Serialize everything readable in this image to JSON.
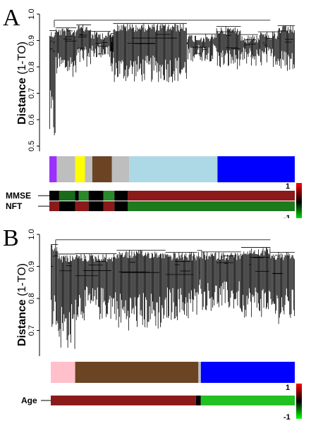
{
  "panels": [
    {
      "letter": "A",
      "ylabel_bold": "Distance",
      "ylabel_rest": " (1-TO)",
      "yticks": [
        "0.5",
        "0.6",
        "0.7",
        "0.8",
        "0.9",
        "1.0"
      ],
      "yrange": [
        0.48,
        1.0
      ],
      "modules": [
        {
          "color": "#9b30ff",
          "from": 0.0,
          "to": 0.03
        },
        {
          "color": "#bebebe",
          "from": 0.03,
          "to": 0.105
        },
        {
          "color": "#ffff00",
          "from": 0.105,
          "to": 0.145
        },
        {
          "color": "#bebebe",
          "from": 0.145,
          "to": 0.175
        },
        {
          "color": "#6b4423",
          "from": 0.175,
          "to": 0.255
        },
        {
          "color": "#bebebe",
          "from": 0.255,
          "to": 0.325
        },
        {
          "color": "#add8e6",
          "from": 0.325,
          "to": 0.685
        },
        {
          "color": "#0000ff",
          "from": 0.685,
          "to": 1.0
        }
      ],
      "traits": [
        {
          "label": "MMSE",
          "segments": [
            {
              "color": "#000000",
              "from": 0.0,
              "to": 0.04
            },
            {
              "color": "#1a6b1a",
              "from": 0.04,
              "to": 0.105
            },
            {
              "color": "#000000",
              "from": 0.105,
              "to": 0.12
            },
            {
              "color": "#2a8a2a",
              "from": 0.12,
              "to": 0.16
            },
            {
              "color": "#000000",
              "from": 0.16,
              "to": 0.22
            },
            {
              "color": "#2a8a2a",
              "from": 0.22,
              "to": 0.265
            },
            {
              "color": "#000000",
              "from": 0.265,
              "to": 0.32
            },
            {
              "color": "#8b1a1a",
              "from": 0.32,
              "to": 1.0
            }
          ]
        },
        {
          "label": "NFT",
          "segments": [
            {
              "color": "#8b1a1a",
              "from": 0.0,
              "to": 0.04
            },
            {
              "color": "#000000",
              "from": 0.04,
              "to": 0.105
            },
            {
              "color": "#8b1a1a",
              "from": 0.105,
              "to": 0.16
            },
            {
              "color": "#000000",
              "from": 0.16,
              "to": 0.22
            },
            {
              "color": "#8b1a1a",
              "from": 0.22,
              "to": 0.265
            },
            {
              "color": "#000000",
              "from": 0.265,
              "to": 0.32
            },
            {
              "color": "#1d7a1d",
              "from": 0.32,
              "to": 1.0
            }
          ]
        }
      ],
      "scale": {
        "top": "1",
        "bottom": "-1"
      }
    },
    {
      "letter": "B",
      "ylabel_bold": "Distance",
      "ylabel_rest": " (1-TO)",
      "yticks": [
        "0.7",
        "0.8",
        "0.9",
        "1.0"
      ],
      "yrange": [
        0.62,
        1.0
      ],
      "modules": [
        {
          "color": "#ffc0cb",
          "from": 0.0,
          "to": 0.1
        },
        {
          "color": "#6b4423",
          "from": 0.1,
          "to": 0.605
        },
        {
          "color": "#bebebe",
          "from": 0.605,
          "to": 0.615
        },
        {
          "color": "#0000ff",
          "from": 0.615,
          "to": 1.0
        }
      ],
      "traits": [
        {
          "label": "Age",
          "segments": [
            {
              "color": "#8b1a1a",
              "from": 0.0,
              "to": 0.595
            },
            {
              "color": "#000000",
              "from": 0.595,
              "to": 0.615
            },
            {
              "color": "#22c022",
              "from": 0.615,
              "to": 1.0
            }
          ]
        }
      ],
      "scale": {
        "top": "1",
        "bottom": "-1"
      }
    }
  ]
}
